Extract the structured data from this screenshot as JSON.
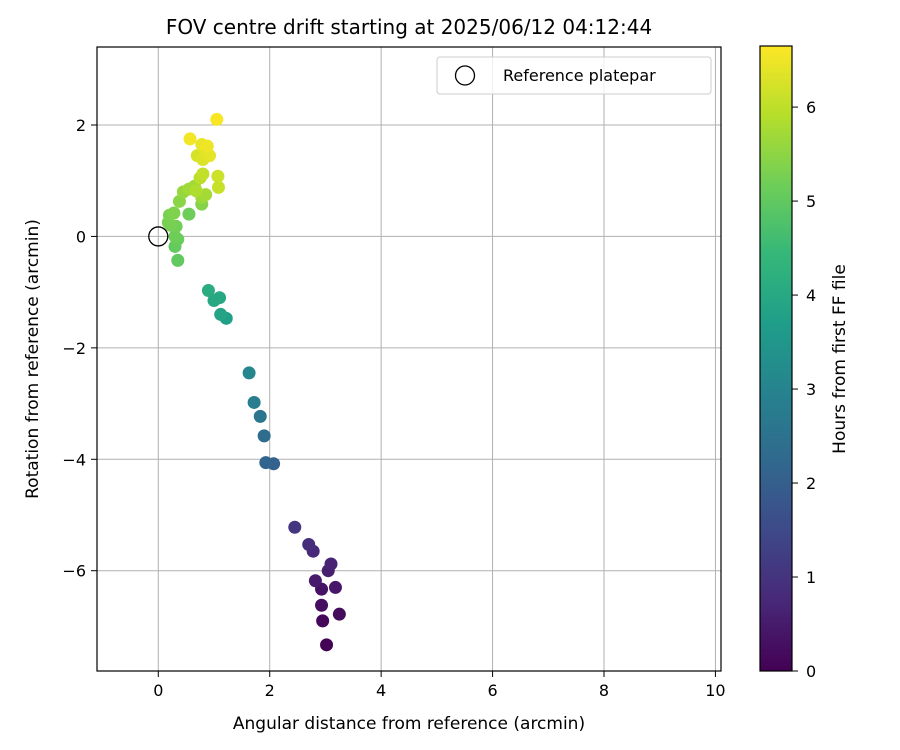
{
  "chart_data": {
    "type": "scatter",
    "title": "FOV centre drift starting at 2025/06/12 04:12:44",
    "xlabel": "Angular distance from reference (arcmin)",
    "ylabel": "Rotation from reference (arcmin)",
    "xlim": [
      -1.1,
      10.1
    ],
    "ylim": [
      -7.8,
      3.4
    ],
    "xticks": [
      "0",
      "2",
      "4",
      "6",
      "8",
      "10"
    ],
    "yticks": [
      "−6",
      "−4",
      "−2",
      "0",
      "2"
    ],
    "grid": true,
    "legend": {
      "position": "top-right",
      "entries": [
        "Reference platepar"
      ]
    },
    "reference_point": {
      "x": 0,
      "y": 0
    },
    "colorbar": {
      "label": "Hours from first FF file",
      "range": [
        0,
        6.65
      ],
      "ticks": [
        "0",
        "1",
        "2",
        "3",
        "4",
        "5",
        "6"
      ],
      "colormap": "viridis"
    },
    "points": [
      {
        "x": 3.02,
        "y": -7.33,
        "t": 0.05
      },
      {
        "x": 2.95,
        "y": -6.9,
        "t": 0.12
      },
      {
        "x": 3.25,
        "y": -6.78,
        "t": 0.18
      },
      {
        "x": 2.93,
        "y": -6.62,
        "t": 0.24
      },
      {
        "x": 2.93,
        "y": -6.33,
        "t": 0.33
      },
      {
        "x": 3.18,
        "y": -6.3,
        "t": 0.4
      },
      {
        "x": 2.82,
        "y": -6.18,
        "t": 0.48
      },
      {
        "x": 3.05,
        "y": -6.0,
        "t": 0.56
      },
      {
        "x": 3.1,
        "y": -5.88,
        "t": 0.65
      },
      {
        "x": 2.78,
        "y": -5.65,
        "t": 0.78
      },
      {
        "x": 2.7,
        "y": -5.53,
        "t": 0.88
      },
      {
        "x": 2.45,
        "y": -5.22,
        "t": 1.05
      },
      {
        "x": 2.07,
        "y": -4.08,
        "t": 2.05
      },
      {
        "x": 1.93,
        "y": -4.06,
        "t": 2.15
      },
      {
        "x": 1.9,
        "y": -3.58,
        "t": 2.35
      },
      {
        "x": 1.83,
        "y": -3.23,
        "t": 2.6
      },
      {
        "x": 1.72,
        "y": -2.98,
        "t": 2.8
      },
      {
        "x": 1.63,
        "y": -2.45,
        "t": 3.05
      },
      {
        "x": 1.22,
        "y": -1.47,
        "t": 3.75
      },
      {
        "x": 1.12,
        "y": -1.4,
        "t": 3.85
      },
      {
        "x": 1.1,
        "y": -1.1,
        "t": 3.95
      },
      {
        "x": 1.0,
        "y": -1.15,
        "t": 4.0
      },
      {
        "x": 0.9,
        "y": -0.97,
        "t": 4.1
      },
      {
        "x": 0.35,
        "y": -0.43,
        "t": 5.0
      },
      {
        "x": 0.3,
        "y": -0.18,
        "t": 5.05
      },
      {
        "x": 0.35,
        "y": -0.05,
        "t": 5.1
      },
      {
        "x": 0.3,
        "y": 0.0,
        "t": 5.15
      },
      {
        "x": 0.32,
        "y": 0.18,
        "t": 5.2
      },
      {
        "x": 0.22,
        "y": 0.2,
        "t": 5.25
      },
      {
        "x": 0.18,
        "y": 0.25,
        "t": 5.28
      },
      {
        "x": 0.2,
        "y": 0.38,
        "t": 5.3
      },
      {
        "x": 0.28,
        "y": 0.42,
        "t": 5.35
      },
      {
        "x": 0.55,
        "y": 0.4,
        "t": 5.15
      },
      {
        "x": 0.38,
        "y": 0.63,
        "t": 5.45
      },
      {
        "x": 0.45,
        "y": 0.8,
        "t": 5.6
      },
      {
        "x": 0.55,
        "y": 0.85,
        "t": 5.7
      },
      {
        "x": 0.65,
        "y": 0.9,
        "t": 5.7
      },
      {
        "x": 0.78,
        "y": 0.58,
        "t": 5.4
      },
      {
        "x": 0.78,
        "y": 0.7,
        "t": 5.65
      },
      {
        "x": 0.85,
        "y": 0.75,
        "t": 5.75
      },
      {
        "x": 0.68,
        "y": 0.82,
        "t": 5.85
      },
      {
        "x": 0.75,
        "y": 1.05,
        "t": 5.95
      },
      {
        "x": 0.8,
        "y": 1.12,
        "t": 6.05
      },
      {
        "x": 1.08,
        "y": 0.88,
        "t": 6.1
      },
      {
        "x": 1.07,
        "y": 1.08,
        "t": 6.15
      },
      {
        "x": 0.7,
        "y": 1.45,
        "t": 6.25
      },
      {
        "x": 0.8,
        "y": 1.38,
        "t": 6.3
      },
      {
        "x": 0.85,
        "y": 1.5,
        "t": 6.35
      },
      {
        "x": 0.92,
        "y": 1.45,
        "t": 6.4
      },
      {
        "x": 0.78,
        "y": 1.65,
        "t": 6.45
      },
      {
        "x": 0.88,
        "y": 1.62,
        "t": 6.5
      },
      {
        "x": 0.57,
        "y": 1.75,
        "t": 6.55
      },
      {
        "x": 1.05,
        "y": 2.1,
        "t": 6.6
      }
    ]
  }
}
